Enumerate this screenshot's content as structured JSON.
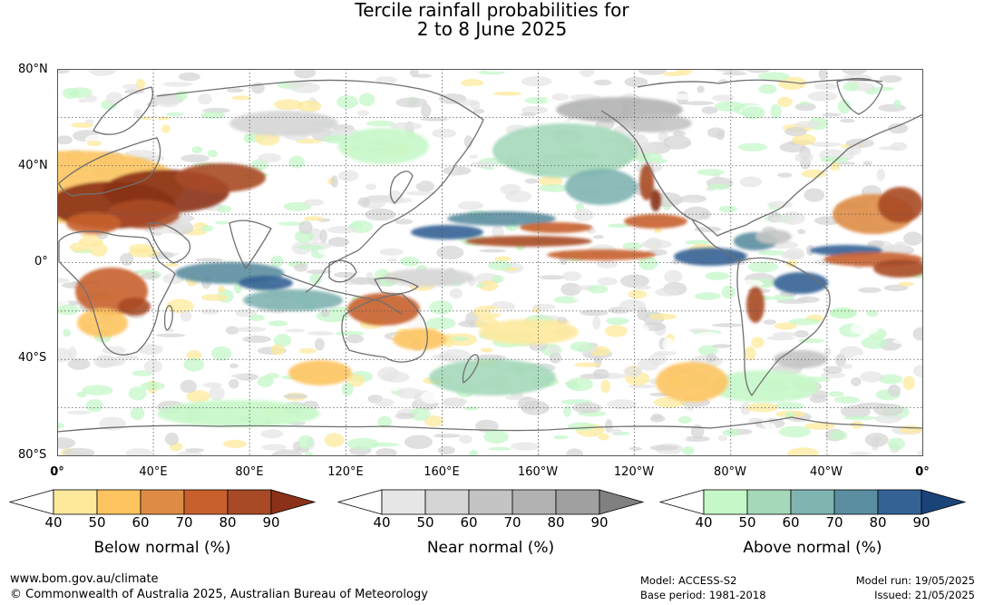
{
  "title": {
    "line1": "Tercile rainfall probabilities for",
    "line2": "2 to 8 June 2025"
  },
  "map": {
    "lat_labels": [
      "80°N",
      "40°N",
      "0°",
      "40°S",
      "80°S"
    ],
    "lon_labels": [
      "0°",
      "40°E",
      "80°E",
      "120°E",
      "160°E",
      "160°W",
      "120°W",
      "80°W",
      "40°W",
      "0°"
    ],
    "colors": {
      "land_outline": "#707070",
      "grid": "#555555"
    }
  },
  "legends": [
    {
      "name": "below",
      "title": "Below normal (%)",
      "ticks": [
        "40",
        "50",
        "60",
        "70",
        "80",
        "90"
      ],
      "colors": [
        "#ffffff",
        "#fde99c",
        "#fdc45f",
        "#de8c45",
        "#c8602e",
        "#a84a26",
        "#8a3118"
      ]
    },
    {
      "name": "near",
      "title": "Near normal (%)",
      "ticks": [
        "40",
        "50",
        "60",
        "70",
        "80",
        "90"
      ],
      "colors": [
        "#ffffff",
        "#e6e6e6",
        "#d5d5d5",
        "#c4c4c4",
        "#b2b2b2",
        "#a0a0a0",
        "#808080"
      ]
    },
    {
      "name": "above",
      "title": "Above normal (%)",
      "ticks": [
        "40",
        "50",
        "60",
        "70",
        "80",
        "90"
      ],
      "colors": [
        "#ffffff",
        "#c6f7c9",
        "#a4d8b9",
        "#7fb4b1",
        "#5b8ea0",
        "#346295",
        "#1a4478"
      ]
    }
  ],
  "footer": {
    "url": "www.bom.gov.au/climate",
    "copyright": "© Commonwealth of Australia 2025, Australian Bureau of Meteorology",
    "model": "Model: ACCESS-S2",
    "base_period": "Base period: 1981-2018",
    "model_run": "Model run: 19/05/2025",
    "issued": "Issued: 21/05/2025"
  }
}
